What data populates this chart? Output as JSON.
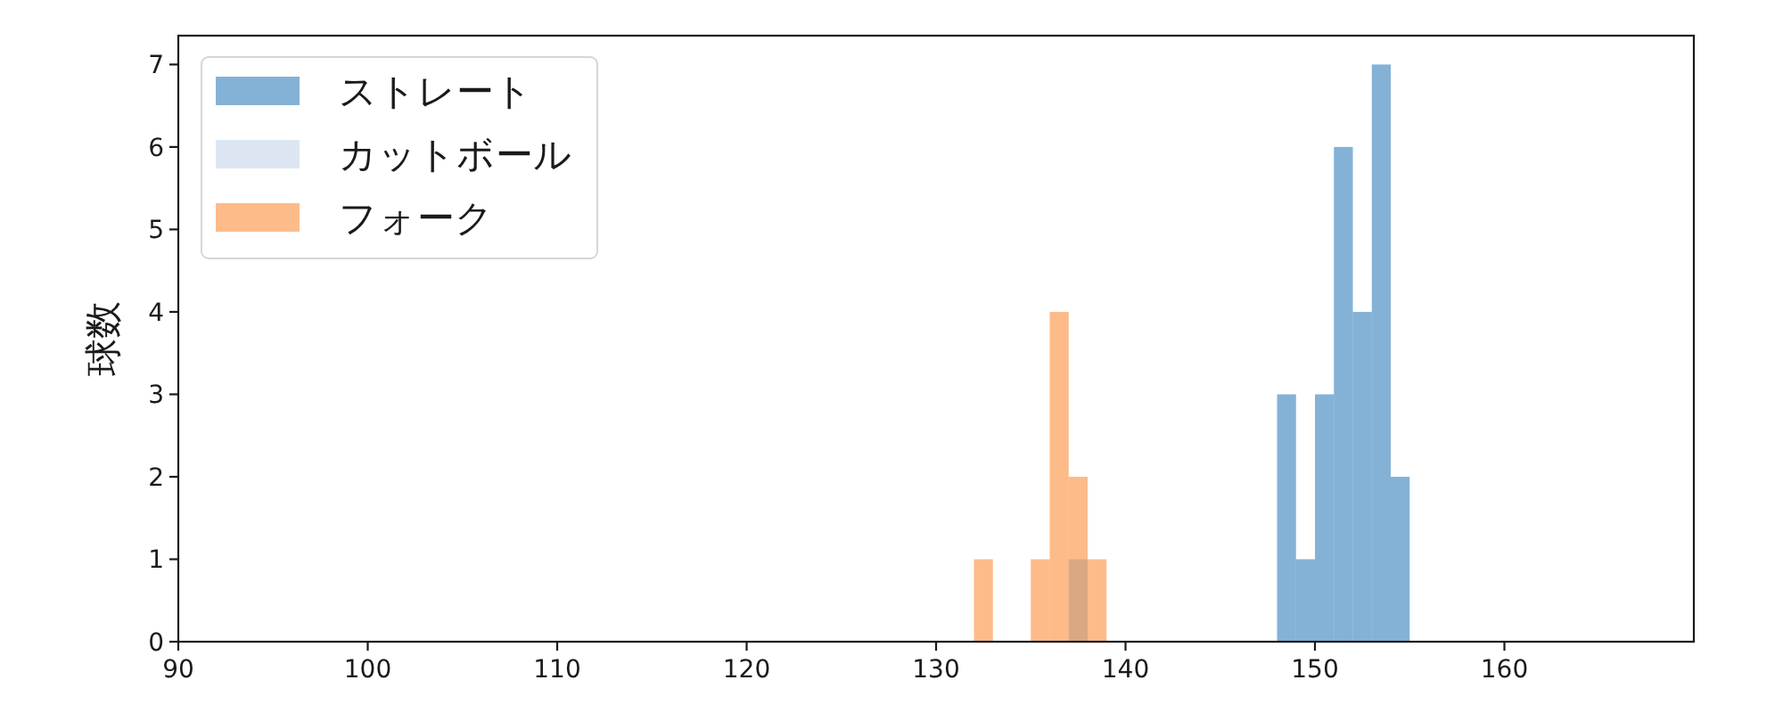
{
  "chart_data": {
    "type": "histogram",
    "ylabel": "球数",
    "bins": [
      132,
      133,
      135,
      136,
      137,
      138,
      139,
      148,
      149,
      150,
      151,
      152,
      153,
      154,
      155
    ],
    "series": [
      {
        "name": "ストレート",
        "color": "#84b2d7",
        "values": [
          0,
          0,
          0,
          0,
          0,
          0,
          0,
          3,
          1,
          3,
          6,
          4,
          7,
          2
        ]
      },
      {
        "name": "カットボール",
        "color": "#dbe6f2",
        "values": [
          0,
          0,
          0,
          0,
          1,
          0,
          0,
          0,
          0,
          0,
          0,
          0,
          0,
          0
        ]
      },
      {
        "name": "フォーク",
        "color": "#fdbb8a",
        "values": [
          1,
          0,
          1,
          4,
          2,
          1,
          0,
          0,
          0,
          0,
          0,
          0,
          0,
          0
        ]
      }
    ],
    "xlim": [
      90,
      170
    ],
    "xticks": [
      90,
      100,
      110,
      120,
      130,
      140,
      150,
      160
    ],
    "ylim": [
      0,
      7.35
    ],
    "yticks": [
      0,
      1,
      2,
      3,
      4,
      5,
      6,
      7
    ],
    "legend": "top left"
  }
}
